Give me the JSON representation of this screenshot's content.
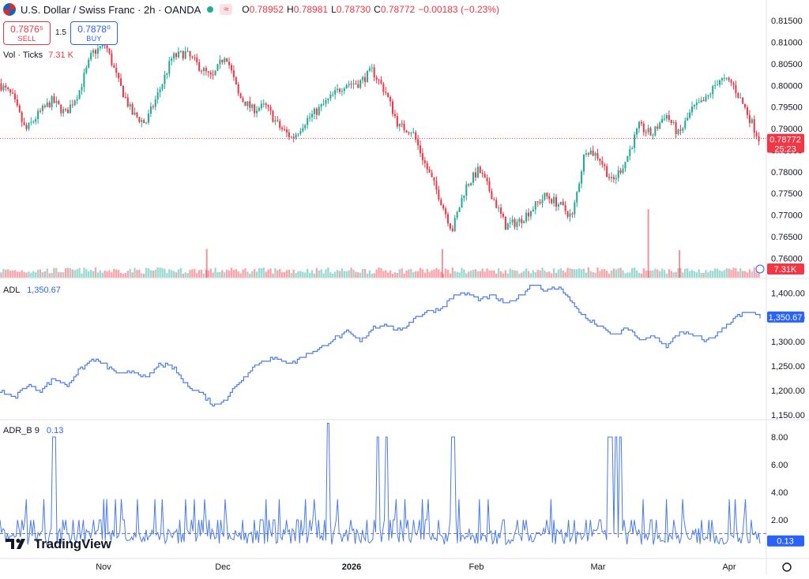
{
  "header": {
    "symbol": "U.S. Dollar / Swiss Franc · 2h · OANDA",
    "open_label": "O",
    "open": "0.78952",
    "high_label": "H",
    "high": "0.78981",
    "low_label": "L",
    "low": "0.78730",
    "close_label": "C",
    "close": "0.78772",
    "change": "−0.00183 (−0.23%)",
    "approx_icon": "≈"
  },
  "trade": {
    "sell_price": "0.7876⁵",
    "sell_label": "SELL",
    "spread": "1.5",
    "buy_price": "0.7878⁰",
    "buy_label": "BUY"
  },
  "volume_legend": {
    "label": "Vol · Ticks",
    "value": "7.31 K"
  },
  "adl_legend": {
    "label": "ADL",
    "value": "1,350.67"
  },
  "adr_legend": {
    "label": "ADR_B 9",
    "value": "0.13"
  },
  "badges": {
    "price": "0.78772",
    "countdown": "25:23",
    "volume": "7.31K",
    "adl": "1,350.67",
    "adr": "0.13"
  },
  "logo": {
    "text": "TradingView"
  },
  "colors": {
    "up": "#22ab94",
    "down": "#f23645",
    "indicator": "#4a7bec",
    "accent": "#2962ff"
  },
  "chart_data": [
    {
      "type": "candlestick",
      "title": "U.S. Dollar / Swiss Franc · 2h · OANDA",
      "x_ticks": [
        "Nov",
        "Dec",
        "2026",
        "Feb",
        "Mar",
        "Apr"
      ],
      "y_ticks": [
        "0.81500",
        "0.81000",
        "0.80500",
        "0.80000",
        "0.79500",
        "0.79000",
        "0.78500",
        "0.78000",
        "0.77500",
        "0.77000",
        "0.76500",
        "0.76000"
      ],
      "ylim": [
        0.7555,
        0.8165
      ],
      "current_price": 0.78772,
      "close_path": [
        0.8005,
        0.7975,
        0.7895,
        0.7935,
        0.7965,
        0.7935,
        0.7985,
        0.8075,
        0.8095,
        0.8005,
        0.7935,
        0.7912,
        0.7985,
        0.8065,
        0.8075,
        0.8045,
        0.8015,
        0.8075,
        0.7975,
        0.7945,
        0.7952,
        0.7905,
        0.7878,
        0.7918,
        0.7945,
        0.7975,
        0.8005,
        0.8005,
        0.8035,
        0.7985,
        0.7905,
        0.7895,
        0.7815,
        0.7745,
        0.7665,
        0.7765,
        0.7805,
        0.7745,
        0.7675,
        0.7685,
        0.7715,
        0.7745,
        0.7725,
        0.7695,
        0.7855,
        0.7835,
        0.7775,
        0.7825,
        0.7905,
        0.7885,
        0.7935,
        0.7885,
        0.7945,
        0.7965,
        0.8015,
        0.8005,
        0.7945,
        0.78772
      ]
    },
    {
      "type": "bar",
      "title": "Vol · Ticks",
      "current_value": "7.31K",
      "spikes": [
        {
          "x_fraction": 0.271,
          "value": 2.6
        },
        {
          "x_fraction": 0.581,
          "value": 2.6
        },
        {
          "x_fraction": 0.852,
          "value": 6.2
        },
        {
          "x_fraction": 0.893,
          "value": 2.5
        }
      ]
    },
    {
      "type": "line",
      "title": "ADL",
      "y_ticks": [
        "1,400.00",
        "1,350.00",
        "1,300.00",
        "1,250.00",
        "1,200.00",
        "1,150.00"
      ],
      "ylim": [
        1140,
        1425
      ],
      "current_value": 1350.67,
      "values": [
        1200,
        1185,
        1210,
        1200,
        1225,
        1210,
        1245,
        1265,
        1250,
        1230,
        1240,
        1225,
        1255,
        1245,
        1210,
        1195,
        1170,
        1185,
        1220,
        1250,
        1265,
        1262,
        1258,
        1275,
        1285,
        1305,
        1320,
        1300,
        1330,
        1335,
        1320,
        1348,
        1362,
        1368,
        1395,
        1400,
        1385,
        1395,
        1375,
        1395,
        1420,
        1405,
        1412,
        1375,
        1345,
        1330,
        1312,
        1330,
        1302,
        1312,
        1290,
        1322,
        1312,
        1302,
        1320,
        1348,
        1360,
        1352
      ]
    },
    {
      "type": "line",
      "title": "ADR_B 9",
      "y_ticks": [
        "8.00",
        "6.00",
        "4.00",
        "2.00"
      ],
      "ylim": [
        -0.8,
        9.2
      ],
      "current_value": 0.13,
      "dashed_level": 1.0,
      "spikes": [
        {
          "x_fraction": 0.071,
          "value": 8.0
        },
        {
          "x_fraction": 0.432,
          "value": 9.0
        },
        {
          "x_fraction": 0.497,
          "value": 8.0
        },
        {
          "x_fraction": 0.509,
          "value": 8.0
        },
        {
          "x_fraction": 0.596,
          "value": 8.0
        },
        {
          "x_fraction": 0.801,
          "value": 8.0
        },
        {
          "x_fraction": 0.805,
          "value": 8.0
        },
        {
          "x_fraction": 0.811,
          "value": 8.0
        },
        {
          "x_fraction": 0.816,
          "value": 8.0
        }
      ]
    }
  ]
}
